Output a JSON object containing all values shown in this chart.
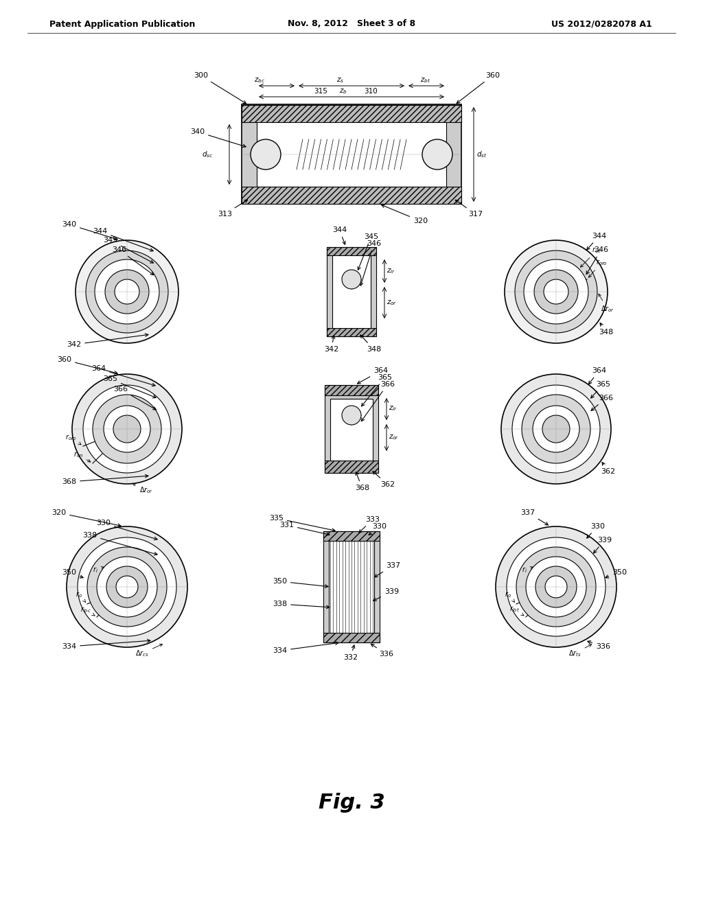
{
  "header_left": "Patent Application Publication",
  "header_mid": "Nov. 8, 2012   Sheet 3 of 8",
  "header_right": "US 2012/0282078 A1",
  "fig_label": "Fig. 3",
  "bg_color": "#ffffff"
}
